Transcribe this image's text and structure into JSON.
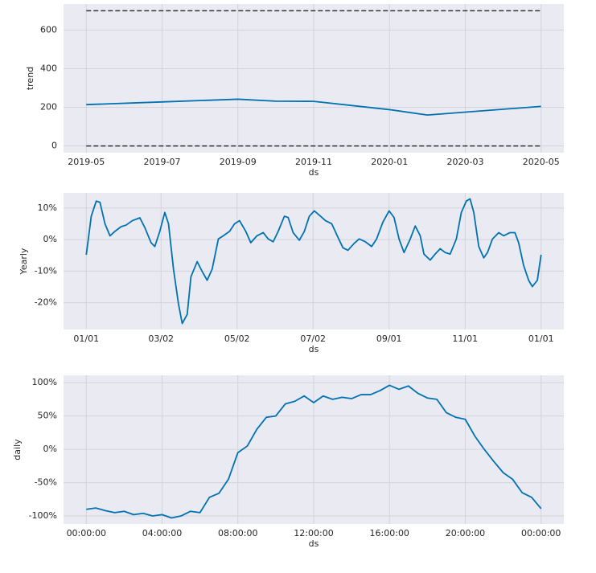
{
  "chart_data": [
    {
      "type": "line",
      "ylabel": "trend",
      "xlabel": "ds",
      "color": "#0072B2",
      "grid": true,
      "x": [
        "2019-05",
        "2019-07",
        "2019-09",
        "2019-10",
        "2019-11",
        "2020-01",
        "2020-02",
        "2020-05"
      ],
      "values": [
        214,
        228,
        242,
        232,
        231,
        188,
        160,
        205
      ],
      "hlines": [
        0,
        700
      ],
      "ylim": [
        -35,
        735
      ],
      "yticks": [
        0,
        200,
        400,
        600
      ],
      "xticks": [
        "2019-05",
        "2019-07",
        "2019-09",
        "2019-11",
        "2020-01",
        "2020-03",
        "2020-05"
      ]
    },
    {
      "type": "line",
      "ylabel": "Yearly",
      "xlabel": "ds",
      "color": "#0072B2",
      "grid": true,
      "x": [
        0,
        4,
        8,
        11,
        15,
        19,
        23,
        28,
        32,
        37,
        43,
        47,
        52,
        55,
        59,
        63,
        66,
        70,
        74,
        77,
        81,
        84,
        89,
        93,
        97,
        101,
        106,
        110,
        115,
        119,
        123,
        128,
        132,
        137,
        142,
        146,
        150,
        154,
        159,
        162,
        166,
        171,
        175,
        179,
        183,
        188,
        192,
        197,
        202,
        206,
        210,
        215,
        219,
        224,
        229,
        233,
        238,
        243,
        247,
        251,
        255,
        260,
        264,
        268,
        271,
        276,
        280,
        284,
        288,
        292,
        297,
        301,
        305,
        308,
        311,
        315,
        319,
        322,
        326,
        331,
        335,
        340,
        344,
        347,
        351,
        355,
        358,
        362,
        365
      ],
      "values": [
        -4.8,
        7.4,
        12.2,
        11.8,
        5.0,
        1.2,
        2.6,
        4.1,
        4.6,
        6.0,
        6.9,
        3.8,
        -1.0,
        -2.2,
        2.6,
        8.6,
        5.0,
        -9.4,
        -20.4,
        -26.6,
        -23.7,
        -11.8,
        -7.0,
        -10.1,
        -12.9,
        -9.4,
        0.2,
        1.2,
        2.6,
        5.0,
        6.0,
        2.6,
        -1.0,
        1.2,
        2.2,
        0.2,
        -0.7,
        2.6,
        7.4,
        7.0,
        2.2,
        -0.2,
        2.6,
        7.4,
        9.1,
        7.4,
        6.0,
        5.0,
        0.7,
        -2.6,
        -3.4,
        -1.2,
        0.2,
        -0.7,
        -2.2,
        0.2,
        5.5,
        9.1,
        7.0,
        0.2,
        -4.1,
        0.2,
        4.3,
        1.2,
        -4.6,
        -6.5,
        -4.6,
        -2.9,
        -4.1,
        -4.6,
        0.2,
        8.6,
        12.2,
        12.9,
        8.6,
        -2.2,
        -5.8,
        -4.1,
        0.2,
        2.2,
        1.2,
        2.2,
        2.2,
        -1.0,
        -8.2,
        -12.9,
        -14.9,
        -12.9,
        -4.8
      ],
      "xlim": [
        -18.25,
        383.25
      ],
      "xticks": [
        {
          "value": 0,
          "label": "01/01"
        },
        {
          "value": 60,
          "label": "03/02"
        },
        {
          "value": 121,
          "label": "05/02"
        },
        {
          "value": 182,
          "label": "07/02"
        },
        {
          "value": 243,
          "label": "09/01"
        },
        {
          "value": 304,
          "label": "11/01"
        },
        {
          "value": 365,
          "label": "01/01"
        }
      ],
      "ylim": [
        -28.5,
        14.8
      ],
      "yticks": [
        {
          "value": -20,
          "label": "-20%"
        },
        {
          "value": -10,
          "label": "-10%"
        },
        {
          "value": 0,
          "label": "0%"
        },
        {
          "value": 10,
          "label": "10%"
        }
      ]
    },
    {
      "type": "line",
      "ylabel": "daily",
      "xlabel": "ds",
      "color": "#0072B2",
      "grid": true,
      "x": [
        0,
        0.5,
        1,
        1.5,
        2,
        2.5,
        3,
        3.5,
        4,
        4.5,
        5,
        5.5,
        6,
        6.5,
        7,
        7.5,
        8,
        8.5,
        9,
        9.5,
        10,
        10.5,
        11,
        11.5,
        12,
        12.5,
        13,
        13.5,
        14,
        14.5,
        15,
        15.5,
        16,
        16.5,
        17,
        17.5,
        18,
        18.5,
        19,
        19.5,
        20,
        20.5,
        21,
        21.5,
        22,
        22.5,
        23,
        23.5,
        24
      ],
      "values": [
        -90,
        -88,
        -92,
        -95,
        -93,
        -98,
        -96,
        -100,
        -98,
        -103,
        -100,
        -93,
        -95,
        -72,
        -66,
        -45,
        -5,
        5,
        30,
        48,
        50,
        68,
        72,
        80,
        70,
        80,
        75,
        78,
        76,
        82,
        82,
        88,
        96,
        90,
        95,
        84,
        77,
        75,
        55,
        48,
        45,
        20,
        0,
        -18,
        -35,
        -45,
        -65,
        -72,
        -89
      ],
      "xlim": [
        -1.2,
        25.2
      ],
      "xticks": [
        {
          "value": 0,
          "label": "00:00:00"
        },
        {
          "value": 4,
          "label": "04:00:00"
        },
        {
          "value": 8,
          "label": "08:00:00"
        },
        {
          "value": 12,
          "label": "12:00:00"
        },
        {
          "value": 16,
          "label": "16:00:00"
        },
        {
          "value": 20,
          "label": "20:00:00"
        },
        {
          "value": 24,
          "label": "00:00:00"
        }
      ],
      "ylim": [
        -112,
        111
      ],
      "yticks": [
        {
          "value": -100,
          "label": "-100%"
        },
        {
          "value": -50,
          "label": "-50%"
        },
        {
          "value": 0,
          "label": "0%"
        },
        {
          "value": 50,
          "label": "50%"
        },
        {
          "value": 100,
          "label": "100%"
        }
      ]
    }
  ]
}
